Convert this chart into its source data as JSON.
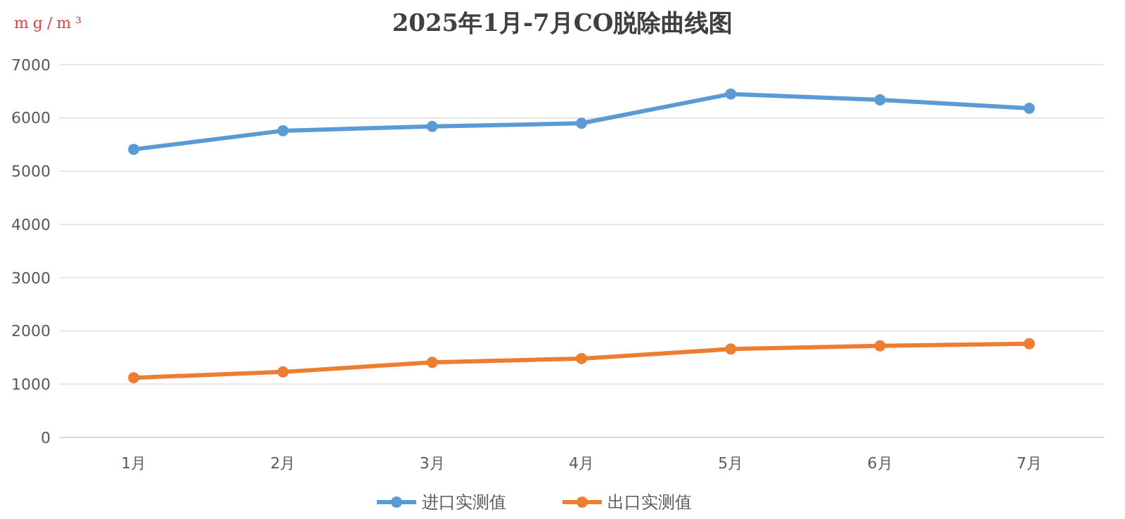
{
  "chart_data": {
    "type": "line",
    "title": "2025年1月-7月CO脱除曲线图",
    "ylabel": "mg/m³",
    "categories": [
      "1月",
      "2月",
      "3月",
      "4月",
      "5月",
      "6月",
      "7月"
    ],
    "series": [
      {
        "name": "进口实测值",
        "color": "#5b9bd5",
        "values": [
          5410,
          5760,
          5840,
          5900,
          6450,
          6340,
          6180
        ]
      },
      {
        "name": "出口实测值",
        "color": "#ed7d31",
        "values": [
          1120,
          1230,
          1410,
          1480,
          1660,
          1720,
          1760
        ]
      }
    ],
    "ylim": [
      0,
      7000
    ],
    "yticks": [
      0,
      1000,
      2000,
      3000,
      4000,
      5000,
      6000,
      7000
    ],
    "grid": "y",
    "legend": "bottom",
    "marker": "circle",
    "line_style": "solid"
  }
}
